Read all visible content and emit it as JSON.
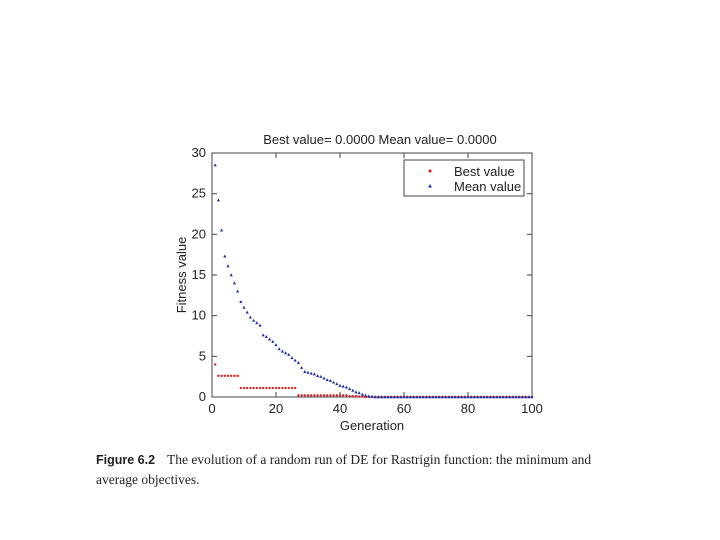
{
  "chart_data": {
    "type": "scatter",
    "title": "Best value= 0.0000  Mean value= 0.0000",
    "xlabel": "Generation",
    "ylabel": "Fitness value",
    "xlim": [
      0,
      100
    ],
    "ylim": [
      0,
      30
    ],
    "xticks": [
      0,
      20,
      40,
      60,
      80,
      100
    ],
    "yticks": [
      0,
      5,
      10,
      15,
      20,
      25,
      30
    ],
    "legend_position": "top-right",
    "grid": false,
    "series": [
      {
        "name": "Best value",
        "marker": "dot",
        "color": "#e02020",
        "x": [
          1,
          2,
          3,
          4,
          5,
          6,
          7,
          8,
          9,
          10,
          11,
          12,
          13,
          14,
          15,
          16,
          17,
          18,
          19,
          20,
          21,
          22,
          23,
          24,
          25,
          26,
          27,
          28,
          29,
          30,
          31,
          32,
          33,
          34,
          35,
          36,
          37,
          38,
          39,
          40,
          41,
          42,
          43,
          44,
          45,
          46,
          47,
          48,
          49,
          50,
          51,
          52,
          53,
          54,
          55,
          56,
          57,
          58,
          59,
          60,
          61,
          62,
          63,
          64,
          65,
          66,
          67,
          68,
          69,
          70,
          71,
          72,
          73,
          74,
          75,
          76,
          77,
          78,
          79,
          80,
          81,
          82,
          83,
          84,
          85,
          86,
          87,
          88,
          89,
          90,
          91,
          92,
          93,
          94,
          95,
          96,
          97,
          98,
          99,
          100
        ],
        "y": [
          4.0,
          2.6,
          2.6,
          2.6,
          2.6,
          2.6,
          2.6,
          2.6,
          1.1,
          1.1,
          1.1,
          1.1,
          1.1,
          1.1,
          1.1,
          1.1,
          1.1,
          1.1,
          1.1,
          1.1,
          1.1,
          1.1,
          1.1,
          1.1,
          1.1,
          1.1,
          0.2,
          0.2,
          0.2,
          0.2,
          0.2,
          0.2,
          0.2,
          0.2,
          0.2,
          0.2,
          0.2,
          0.2,
          0.2,
          0.2,
          0.2,
          0.2,
          0.1,
          0.1,
          0.1,
          0.05,
          0.05,
          0.0,
          0.0,
          0.0,
          0.0,
          0.0,
          0.0,
          0.0,
          0.0,
          0.0,
          0.0,
          0.0,
          0.0,
          0.0,
          0.0,
          0.0,
          0.0,
          0.0,
          0.0,
          0.0,
          0.0,
          0.0,
          0.0,
          0.0,
          0.0,
          0.0,
          0.0,
          0.0,
          0.0,
          0.0,
          0.0,
          0.0,
          0.0,
          0.0,
          0.0,
          0.0,
          0.0,
          0.0,
          0.0,
          0.0,
          0.0,
          0.0,
          0.0,
          0.0,
          0.0,
          0.0,
          0.0,
          0.0,
          0.0,
          0.0,
          0.0,
          0.0,
          0.0,
          0.0
        ]
      },
      {
        "name": "Mean value",
        "marker": "triangle",
        "color": "#2233aa",
        "x": [
          1,
          2,
          3,
          4,
          5,
          6,
          7,
          8,
          9,
          10,
          11,
          12,
          13,
          14,
          15,
          16,
          17,
          18,
          19,
          20,
          21,
          22,
          23,
          24,
          25,
          26,
          27,
          28,
          29,
          30,
          31,
          32,
          33,
          34,
          35,
          36,
          37,
          38,
          39,
          40,
          41,
          42,
          43,
          44,
          45,
          46,
          47,
          48,
          49,
          50,
          51,
          52,
          53,
          54,
          55,
          56,
          57,
          58,
          59,
          60,
          61,
          62,
          63,
          64,
          65,
          66,
          67,
          68,
          69,
          70,
          71,
          72,
          73,
          74,
          75,
          76,
          77,
          78,
          79,
          80,
          81,
          82,
          83,
          84,
          85,
          86,
          87,
          88,
          89,
          90,
          91,
          92,
          93,
          94,
          95,
          96,
          97,
          98,
          99,
          100
        ],
        "y": [
          28.5,
          24.2,
          20.5,
          17.3,
          16.1,
          15.0,
          14.0,
          13.0,
          11.7,
          11.0,
          10.4,
          9.8,
          9.4,
          9.1,
          8.8,
          7.6,
          7.4,
          7.1,
          6.8,
          6.4,
          5.9,
          5.6,
          5.4,
          5.2,
          4.8,
          4.5,
          4.2,
          3.6,
          3.1,
          3.0,
          2.9,
          2.8,
          2.6,
          2.5,
          2.3,
          2.1,
          2.0,
          1.8,
          1.6,
          1.4,
          1.3,
          1.2,
          1.0,
          0.8,
          0.6,
          0.5,
          0.3,
          0.2,
          0.1,
          0.05,
          0.0,
          0.0,
          0.0,
          0.0,
          0.0,
          0.0,
          0.0,
          0.0,
          0.0,
          0.0,
          0.0,
          0.0,
          0.0,
          0.0,
          0.0,
          0.0,
          0.0,
          0.0,
          0.0,
          0.0,
          0.0,
          0.0,
          0.0,
          0.0,
          0.0,
          0.0,
          0.0,
          0.0,
          0.0,
          0.0,
          0.0,
          0.0,
          0.0,
          0.0,
          0.0,
          0.0,
          0.0,
          0.0,
          0.0,
          0.0,
          0.0,
          0.0,
          0.0,
          0.0,
          0.0,
          0.0,
          0.0,
          0.0,
          0.0,
          0.0
        ]
      }
    ]
  },
  "caption": {
    "label": "Figure 6.2",
    "text": "The evolution of a random run of DE for Rastrigin function: the minimum and average objectives."
  }
}
